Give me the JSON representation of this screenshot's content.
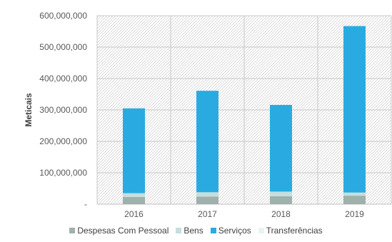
{
  "chart_data": {
    "type": "bar",
    "stacked": true,
    "categories": [
      "2016",
      "2017",
      "2018",
      "2019"
    ],
    "series": [
      {
        "name": "Despesas Com Pessoal",
        "color": "#9fb1ad",
        "values": [
          23000000,
          24000000,
          25000000,
          27000000
        ]
      },
      {
        "name": "Bens",
        "color": "#c5dede",
        "values": [
          12000000,
          14000000,
          15000000,
          10000000
        ]
      },
      {
        "name": "Serviços",
        "color": "#29abe2",
        "values": [
          270000000,
          323000000,
          276000000,
          530000000
        ]
      },
      {
        "name": "Transferências",
        "color": "#e6f4f4",
        "values": [
          0,
          0,
          0,
          0
        ]
      }
    ],
    "y_ticks": [
      "-",
      "100,000,000",
      "200,000,000",
      "300,000,000",
      "400,000,000",
      "500,000,000",
      "600,000,000"
    ],
    "ylim": [
      0,
      600000000
    ],
    "ylabel": "Meticais",
    "grid": true,
    "legend_position": "bottom"
  }
}
